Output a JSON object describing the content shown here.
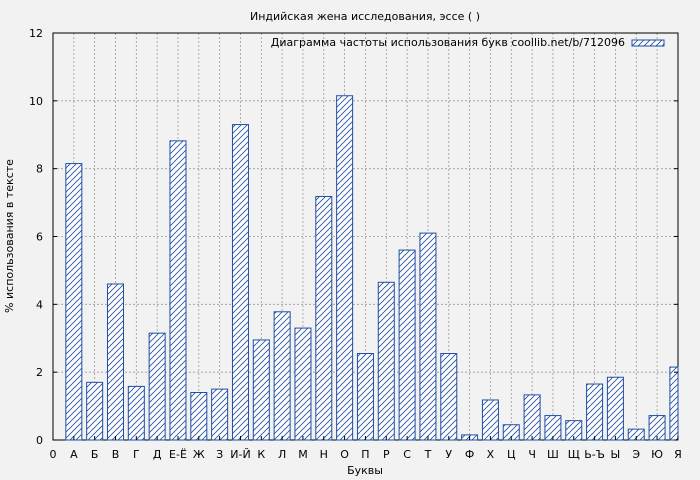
{
  "chart_data": {
    "type": "bar",
    "title": "Индийская жена исследования, эссе ( )",
    "xlabel": "Буквы",
    "ylabel": "% использования в тексте",
    "legend": {
      "label": "Диаграмма частоты использования букв coollib.net/b/712096",
      "placement": "top-right"
    },
    "grid": true,
    "ylim": [
      0,
      12
    ],
    "yticks": [
      0,
      2,
      4,
      6,
      8,
      10,
      12
    ],
    "x_origin_label": "0",
    "categories": [
      "А",
      "Б",
      "В",
      "Г",
      "Д",
      "Е-Ё",
      "Ж",
      "З",
      "И-Й",
      "К",
      "Л",
      "М",
      "Н",
      "О",
      "П",
      "Р",
      "С",
      "Т",
      "У",
      "Ф",
      "Х",
      "Ц",
      "Ч",
      "Ш",
      "Щ",
      "Ь-Ъ",
      "Ы",
      "Э",
      "Ю",
      "Я"
    ],
    "values": [
      8.15,
      1.7,
      4.6,
      1.58,
      3.15,
      8.82,
      1.4,
      1.5,
      9.3,
      2.95,
      3.78,
      3.3,
      7.18,
      10.15,
      2.55,
      4.65,
      5.6,
      6.1,
      2.55,
      0.15,
      1.18,
      0.45,
      1.33,
      0.72,
      0.57,
      1.65,
      1.85,
      0.32,
      0.72,
      2.15
    ],
    "colors": {
      "bar_stroke": "#1f4ea3",
      "hatch": "#1f4ea3",
      "grid": "#9a9a9a",
      "background": "#f2f2f2"
    }
  }
}
